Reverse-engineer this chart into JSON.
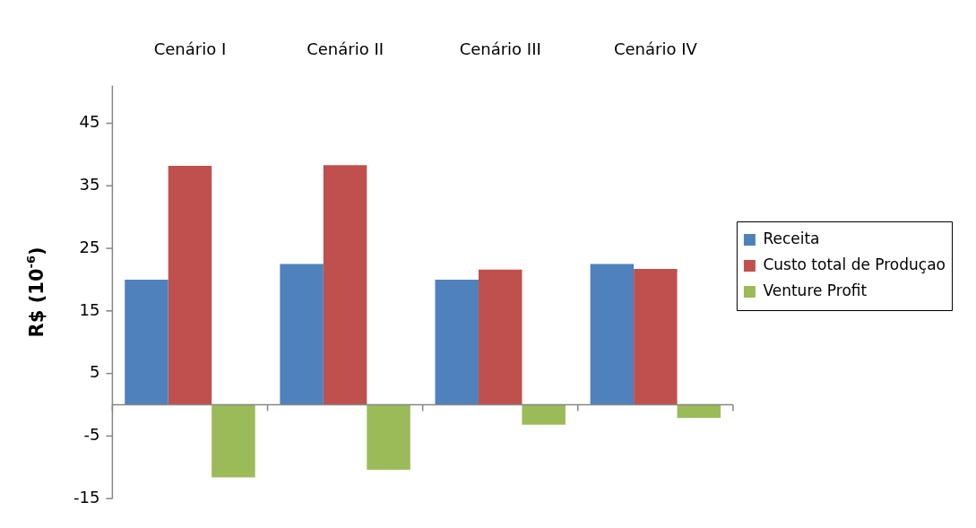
{
  "chart_data": {
    "type": "bar",
    "ylabel": "R$ (10$^{-6}$)",
    "categories": [
      "Cenário I",
      "Cenário II",
      "Cenário III",
      "Cenário IV"
    ],
    "series": [
      {
        "name": "Receita",
        "color": "#4f81bd",
        "values": [
          20.0,
          22.5,
          20.0,
          22.5
        ]
      },
      {
        "name": "Custo total de Produçao",
        "color": "#c0504d",
        "values": [
          38.2,
          38.3,
          21.6,
          21.7
        ]
      },
      {
        "name": "Venture Profit",
        "color": "#9bbb59",
        "values": [
          -11.6,
          -10.4,
          -3.2,
          -2.1
        ]
      }
    ],
    "ylim": [
      -15,
      51
    ],
    "yticks": [
      -15,
      -5,
      5,
      15,
      25,
      35,
      45
    ],
    "grid": false,
    "legend": "right"
  }
}
